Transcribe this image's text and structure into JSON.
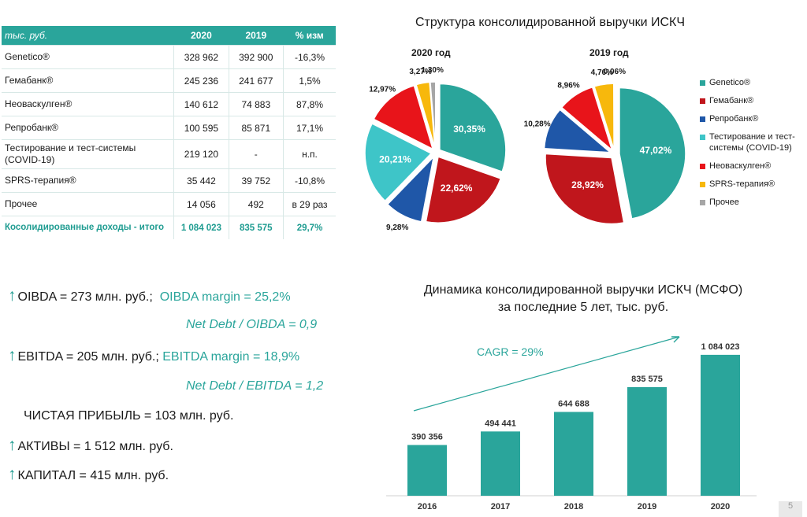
{
  "table": {
    "headers": [
      "тыс. руб.",
      "2020",
      "2019",
      "% изм"
    ],
    "rows": [
      {
        "name": "Genetico®",
        "v2020": "328 962",
        "v2019": "392 900",
        "chg": "-16,3%"
      },
      {
        "name": "Гемабанк®",
        "v2020": "245 236",
        "v2019": "241 677",
        "chg": "1,5%"
      },
      {
        "name": "Неоваскулген®",
        "v2020": "140 612",
        "v2019": "74 883",
        "chg": "87,8%"
      },
      {
        "name": "Репробанк®",
        "v2020": "100 595",
        "v2019": "85 871",
        "chg": "17,1%"
      },
      {
        "name": "Тестирование и тест-системы (COVID-19)",
        "v2020": "219 120",
        "v2019": "-",
        "chg": "н.п."
      },
      {
        "name": "SPRS-терапия®",
        "v2020": "35 442",
        "v2019": "39 752",
        "chg": "-10,8%"
      },
      {
        "name": "Прочее",
        "v2020": "14 056",
        "v2019": "492",
        "chg": "в 29 раз"
      }
    ],
    "total": {
      "name": "Косолидированные доходы - итого",
      "v2020": "1 084 023",
      "v2019": "835 575",
      "chg": "29,7%"
    }
  },
  "structure": {
    "title": "Структура консолидированной выручки ИСКЧ"
  },
  "kpis": {
    "oibda": "OIBDA = 273 млн. руб.;",
    "oibda_margin": "OIBDA margin = 25,2%",
    "nd_oibda": "Net Debt / OIBDA = 0,9",
    "ebitda": "EBITDA = 205 млн. руб.;",
    "ebitda_margin": "EBITDA margin = 18,9%",
    "nd_ebitda": "Net Debt / EBITDA = 1,2",
    "net_profit": "ЧИСТАЯ ПРИБЫЛЬ = 103 млн. руб.",
    "assets": "АКТИВЫ = 1 512 млн. руб.",
    "capital": "КАПИТАЛ = 415 млн. руб."
  },
  "dynamics": {
    "title_line1": "Динамика консолидированной выручки ИСКЧ (МСФО)",
    "title_line2": "за последние 5 лет, тыс. руб.",
    "cagr": "CAGR = 29%"
  },
  "page_number": "5",
  "chart_data": [
    {
      "type": "pie",
      "title": "2020 год",
      "colors": [
        "#2aa59b",
        "#c0161c",
        "#1f57a8",
        "#3ec5c8",
        "#e8141a",
        "#f7b80c",
        "#a6a6a6"
      ],
      "series": [
        {
          "name": "Genetico®",
          "value": 30.35,
          "label": "30,35%"
        },
        {
          "name": "Гемабанк®",
          "value": 22.62,
          "label": "22,62%"
        },
        {
          "name": "Репробанк®",
          "value": 9.28,
          "label": "9,28%"
        },
        {
          "name": "Тестирование и тест-системы (COVID-19)",
          "value": 20.21,
          "label": "20,21%"
        },
        {
          "name": "Неоваскулген®",
          "value": 12.97,
          "label": "12,97%"
        },
        {
          "name": "SPRS-терапия®",
          "value": 3.27,
          "label": "3,27%"
        },
        {
          "name": "Прочее",
          "value": 1.3,
          "label": "1,30%"
        }
      ]
    },
    {
      "type": "pie",
      "title": "2019 год",
      "colors": [
        "#2aa59b",
        "#c0161c",
        "#1f57a8",
        "#3ec5c8",
        "#e8141a",
        "#f7b80c",
        "#a6a6a6"
      ],
      "series": [
        {
          "name": "Genetico®",
          "value": 47.02,
          "label": "47,02%"
        },
        {
          "name": "Гемабанк®",
          "value": 28.92,
          "label": "28,92%"
        },
        {
          "name": "Репробанк®",
          "value": 10.28,
          "label": "10,28%"
        },
        {
          "name": "Тестирование и тест-системы (COVID-19)",
          "value": 0,
          "label": ""
        },
        {
          "name": "Неоваскулген®",
          "value": 8.96,
          "label": "8,96%"
        },
        {
          "name": "SPRS-терапия®",
          "value": 4.76,
          "label": "4,76%"
        },
        {
          "name": "Прочее",
          "value": 0.06,
          "label": "0,06%"
        }
      ],
      "legend": [
        {
          "name": "Genetico®",
          "color": "#2aa59b"
        },
        {
          "name": "Гемабанк®",
          "color": "#c0161c"
        },
        {
          "name": "Репробанк®",
          "color": "#1f57a8"
        },
        {
          "name": "Тестирование и тест-системы (COVID-19)",
          "color": "#3ec5c8"
        },
        {
          "name": "Неоваскулген®",
          "color": "#e8141a"
        },
        {
          "name": "SPRS-терапия®",
          "color": "#f7b80c"
        },
        {
          "name": "Прочее",
          "color": "#a6a6a6"
        }
      ],
      "legend_position": "right"
    },
    {
      "type": "bar",
      "categories": [
        "2016",
        "2017",
        "2018",
        "2019",
        "2020"
      ],
      "values": [
        390356,
        494441,
        644688,
        835575,
        1084023
      ],
      "value_labels": [
        "390 356",
        "494 441",
        "644 688",
        "835 575",
        "1 084 023"
      ],
      "ylim": [
        0,
        1150000
      ],
      "color": "#2aa59b",
      "grid": false
    }
  ]
}
